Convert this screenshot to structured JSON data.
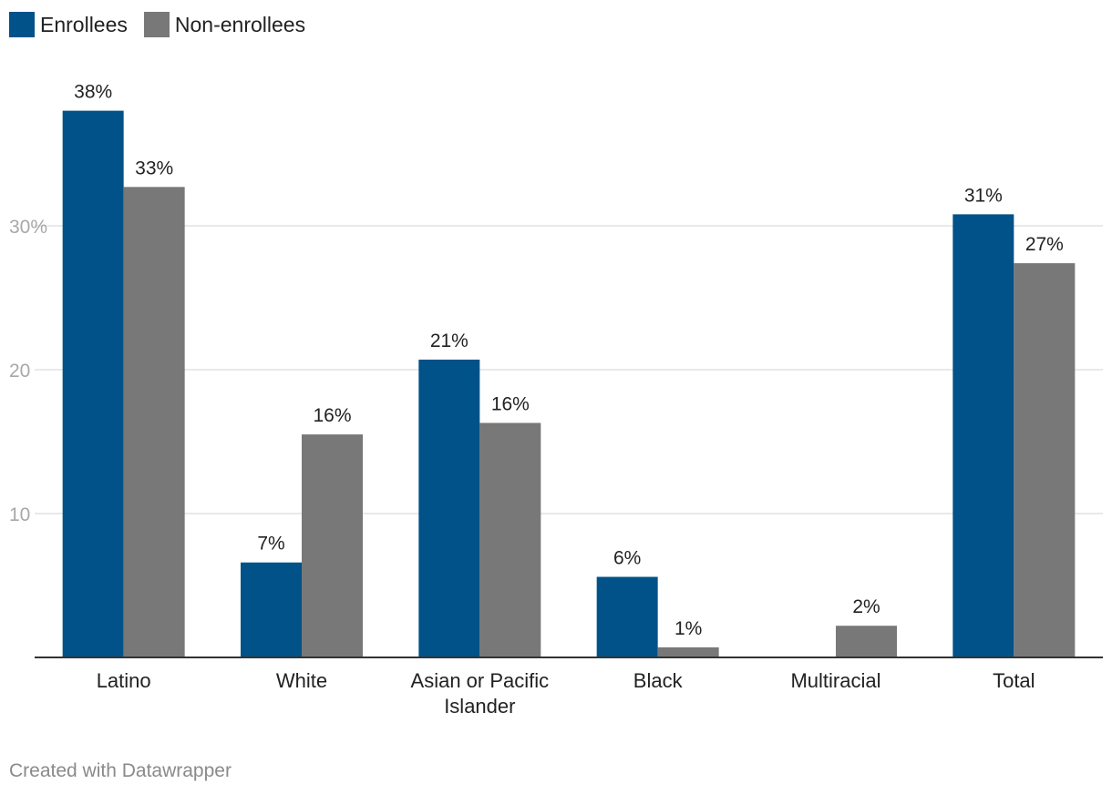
{
  "legend": {
    "items": [
      {
        "label": "Enrollees",
        "color": "#005288"
      },
      {
        "label": "Non-enrollees",
        "color": "#787878"
      }
    ]
  },
  "footer": {
    "credit": "Created with Datawrapper"
  },
  "chart_data": {
    "type": "bar",
    "categories": [
      "Latino",
      "White",
      "Asian or Pacific Islander",
      "Black",
      "Multiracial",
      "Total"
    ],
    "category_label_lines": [
      [
        "Latino"
      ],
      [
        "White"
      ],
      [
        "Asian or Pacific",
        "Islander"
      ],
      [
        "Black"
      ],
      [
        "Multiracial"
      ],
      [
        "Total"
      ]
    ],
    "series": [
      {
        "name": "Enrollees",
        "color": "#005288",
        "values": [
          38,
          6.6,
          20.7,
          5.6,
          null,
          30.8
        ],
        "labels": [
          "38%",
          "7%",
          "21%",
          "6%",
          null,
          "31%"
        ]
      },
      {
        "name": "Non-enrollees",
        "color": "#787878",
        "values": [
          32.7,
          15.5,
          16.3,
          0.7,
          2.2,
          27.4
        ],
        "labels": [
          "33%",
          "16%",
          "16%",
          "1%",
          "2%",
          "27%"
        ]
      }
    ],
    "yticks": [
      {
        "value": 10,
        "label": "10"
      },
      {
        "value": 20,
        "label": "20"
      },
      {
        "value": 30,
        "label": "30%"
      }
    ],
    "ylim": [
      0,
      40
    ],
    "grid": true,
    "legend_position": "top-left"
  }
}
